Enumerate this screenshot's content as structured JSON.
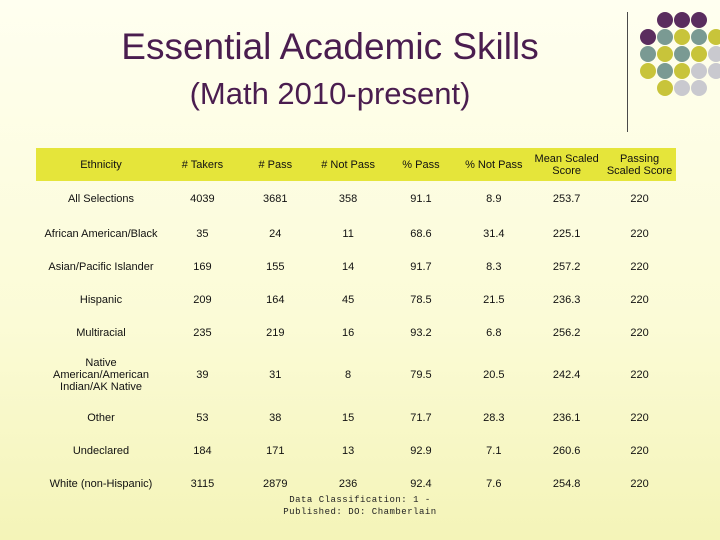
{
  "title": "Essential Academic Skills",
  "subtitle": "(Math 2010-present)",
  "colors": {
    "title": "#4a1d4f",
    "header_bg": "#e5e53a",
    "dot_purple": "#5a2d5e",
    "dot_teal": "#7a9a93",
    "dot_yellow": "#c8c43a",
    "dot_gray": "#c9c9cf"
  },
  "table": {
    "headers": [
      "Ethnicity",
      "# Takers",
      "# Pass",
      "# Not Pass",
      "% Pass",
      "% Not Pass",
      "Mean Scaled Score",
      "Passing Scaled Score"
    ],
    "rows": [
      [
        "All Selections",
        "4039",
        "3681",
        "358",
        "91.1",
        "8.9",
        "253.7",
        "220"
      ],
      [
        "African American/Black",
        "35",
        "24",
        "11",
        "68.6",
        "31.4",
        "225.1",
        "220"
      ],
      [
        "Asian/Pacific Islander",
        "169",
        "155",
        "14",
        "91.7",
        "8.3",
        "257.2",
        "220"
      ],
      [
        "Hispanic",
        "209",
        "164",
        "45",
        "78.5",
        "21.5",
        "236.3",
        "220"
      ],
      [
        "Multiracial",
        "235",
        "219",
        "16",
        "93.2",
        "6.8",
        "256.2",
        "220"
      ],
      [
        "Native American/American Indian/AK Native",
        "39",
        "31",
        "8",
        "79.5",
        "20.5",
        "242.4",
        "220"
      ],
      [
        "Other",
        "53",
        "38",
        "15",
        "71.7",
        "28.3",
        "236.1",
        "220"
      ],
      [
        "Undeclared",
        "184",
        "171",
        "13",
        "92.9",
        "7.1",
        "260.6",
        "220"
      ],
      [
        "White (non-Hispanic)",
        "3115",
        "2879",
        "236",
        "92.4",
        "7.6",
        "254.8",
        "220"
      ]
    ]
  },
  "footer": "Data Classification: 1 - Published: DO: Chamberlain"
}
